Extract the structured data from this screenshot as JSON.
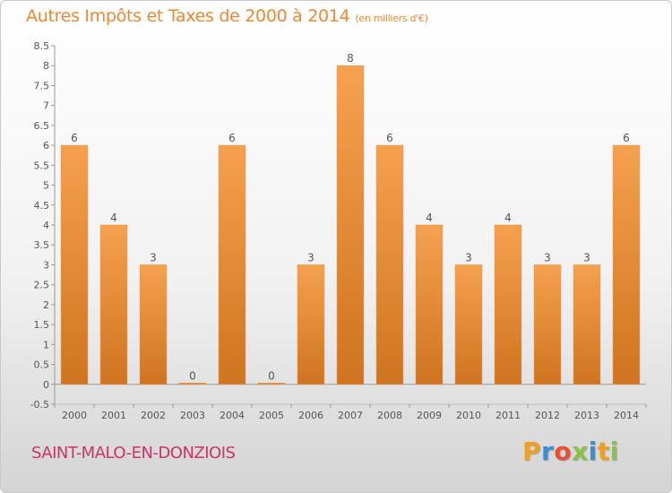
{
  "header": {
    "title": "Autres Impôts et Taxes de 2000 à 2014",
    "unit": "(en milliers d'€)"
  },
  "footer": {
    "commune": "SAINT-MALO-EN-DONZIOIS",
    "logo": "Proxiti"
  },
  "colors": {
    "title": "#ee8833",
    "commune": "#cc3366",
    "bar_top": "#f5a14f",
    "bar_bottom": "#cf7420",
    "logo_letters": [
      "#f0a020",
      "#3a8fd0",
      "#e94f37",
      "#8bc34a",
      "#3a8fd0",
      "#f0a020",
      "#8bc34a"
    ]
  },
  "chart_data": {
    "type": "bar",
    "categories": [
      "2000",
      "2001",
      "2002",
      "2003",
      "2004",
      "2005",
      "2006",
      "2007",
      "2008",
      "2009",
      "2010",
      "2011",
      "2012",
      "2013",
      "2014"
    ],
    "values": [
      6,
      4,
      3,
      0,
      6,
      0,
      3,
      8,
      6,
      4,
      3,
      4,
      3,
      3,
      6
    ],
    "data_labels": [
      "6",
      "4",
      "3",
      "0",
      "6",
      "0",
      "3",
      "8",
      "6",
      "4",
      "3",
      "4",
      "3",
      "3",
      "6"
    ],
    "y_ticks": [
      {
        "value": -0.5,
        "label": "-0.5"
      },
      {
        "value": 0,
        "label": "0"
      },
      {
        "value": 0.5,
        "label": "0.5"
      },
      {
        "value": 1,
        "label": "1"
      },
      {
        "value": 1.5,
        "label": "1.5"
      },
      {
        "value": 2,
        "label": "2"
      },
      {
        "value": 2.5,
        "label": "2.5"
      },
      {
        "value": 3,
        "label": "3"
      },
      {
        "value": 3.5,
        "label": "3.5"
      },
      {
        "value": 4,
        "label": "4"
      },
      {
        "value": 4.5,
        "label": "4.5"
      },
      {
        "value": 5,
        "label": "5"
      },
      {
        "value": 5.5,
        "label": "5.5"
      },
      {
        "value": 6,
        "label": "6"
      },
      {
        "value": 6.5,
        "label": "6.5"
      },
      {
        "value": 7,
        "label": "7"
      },
      {
        "value": 7.5,
        "label": "7.5"
      },
      {
        "value": 8,
        "label": "8"
      },
      {
        "value": 8.5,
        "label": "8.5"
      }
    ],
    "ylim": [
      -0.5,
      8.5
    ],
    "grid": false,
    "title": "Autres Impôts et Taxes de 2000 à 2014",
    "xlabel": "",
    "ylabel": ""
  }
}
